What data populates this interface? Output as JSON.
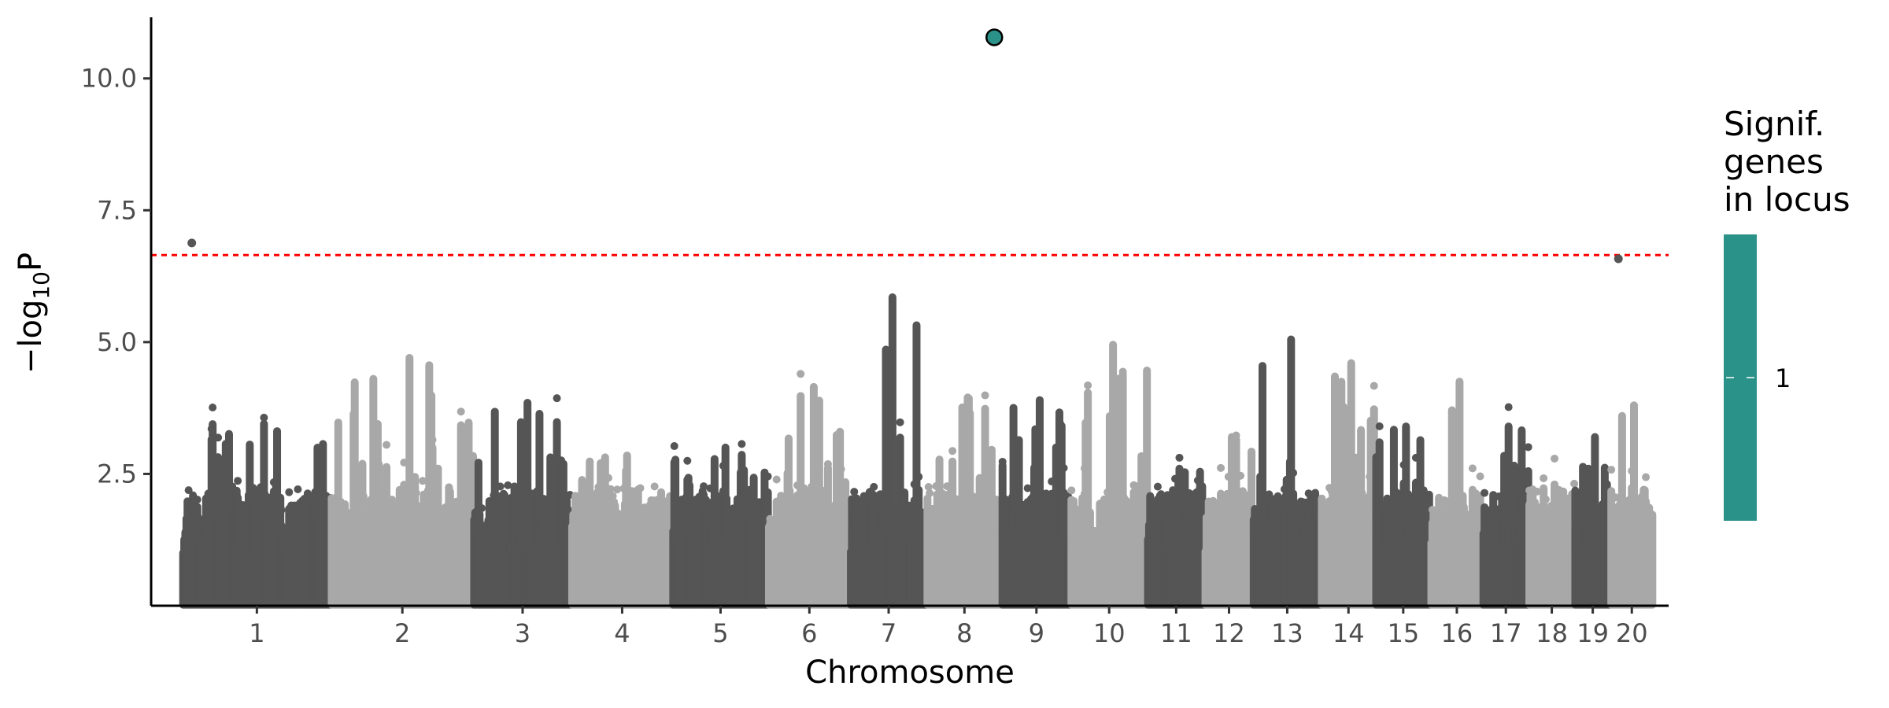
{
  "chart_data": {
    "type": "scatter",
    "title": "",
    "xlabel": "Chromosome",
    "ylabel": "−log₁₀P",
    "ylabel_parts": {
      "prefix": "−log",
      "subscript": "10",
      "suffix": "P"
    },
    "ylim": [
      0,
      11.1
    ],
    "y_ticks": [
      2.5,
      5.0,
      7.5,
      10.0
    ],
    "y_tick_labels": [
      "2.5",
      "5.0",
      "7.5",
      "10.0"
    ],
    "significance_threshold": 6.65,
    "threshold_color": "#ff0000",
    "grid": false,
    "color_dark": "#555555",
    "color_light": "#a8a8a8",
    "highlight_color": "#2a9288",
    "chromosomes": [
      {
        "label": "1",
        "start": 0,
        "end": 1.94,
        "peak": 3.45
      },
      {
        "label": "2",
        "start": 1.94,
        "end": 3.8,
        "peak": 4.7
      },
      {
        "label": "3",
        "start": 3.8,
        "end": 5.08,
        "peak": 3.85
      },
      {
        "label": "4",
        "start": 5.08,
        "end": 6.4,
        "peak": 2.85
      },
      {
        "label": "5",
        "start": 6.4,
        "end": 7.65,
        "peak": 3.0
      },
      {
        "label": "6",
        "start": 7.65,
        "end": 8.72,
        "peak": 4.15
      },
      {
        "label": "7",
        "start": 8.72,
        "end": 9.72,
        "peak": 5.85
      },
      {
        "label": "8",
        "start": 9.72,
        "end": 10.7,
        "peak": 3.95
      },
      {
        "label": "9",
        "start": 10.7,
        "end": 11.6,
        "peak": 3.9
      },
      {
        "label": "10",
        "start": 11.6,
        "end": 12.6,
        "peak": 4.95
      },
      {
        "label": "11",
        "start": 12.6,
        "end": 13.35,
        "peak": 2.6
      },
      {
        "label": "12",
        "start": 13.35,
        "end": 13.98,
        "peak": 3.2
      },
      {
        "label": "13",
        "start": 13.98,
        "end": 14.87,
        "peak": 5.05
      },
      {
        "label": "14",
        "start": 14.87,
        "end": 15.58,
        "peak": 4.6
      },
      {
        "label": "15",
        "start": 15.58,
        "end": 16.3,
        "peak": 3.4
      },
      {
        "label": "16",
        "start": 16.3,
        "end": 16.98,
        "peak": 4.25
      },
      {
        "label": "17",
        "start": 16.98,
        "end": 17.58,
        "peak": 3.4
      },
      {
        "label": "18",
        "start": 17.58,
        "end": 18.18,
        "peak": 2.3
      },
      {
        "label": "19",
        "start": 18.18,
        "end": 18.65,
        "peak": 3.2
      },
      {
        "label": "20",
        "start": 18.65,
        "end": 19.2,
        "peak": 3.8
      }
    ],
    "notable_points": [
      {
        "x": 0.12,
        "y": 6.88,
        "highlight": false
      },
      {
        "x": 10.6,
        "y": 10.78,
        "highlight": true
      },
      {
        "x": 18.75,
        "y": 6.58,
        "highlight": false
      }
    ],
    "legend": {
      "title_lines": [
        "Signif.",
        "genes",
        "in locus"
      ],
      "label": "1",
      "placement": "right"
    }
  }
}
